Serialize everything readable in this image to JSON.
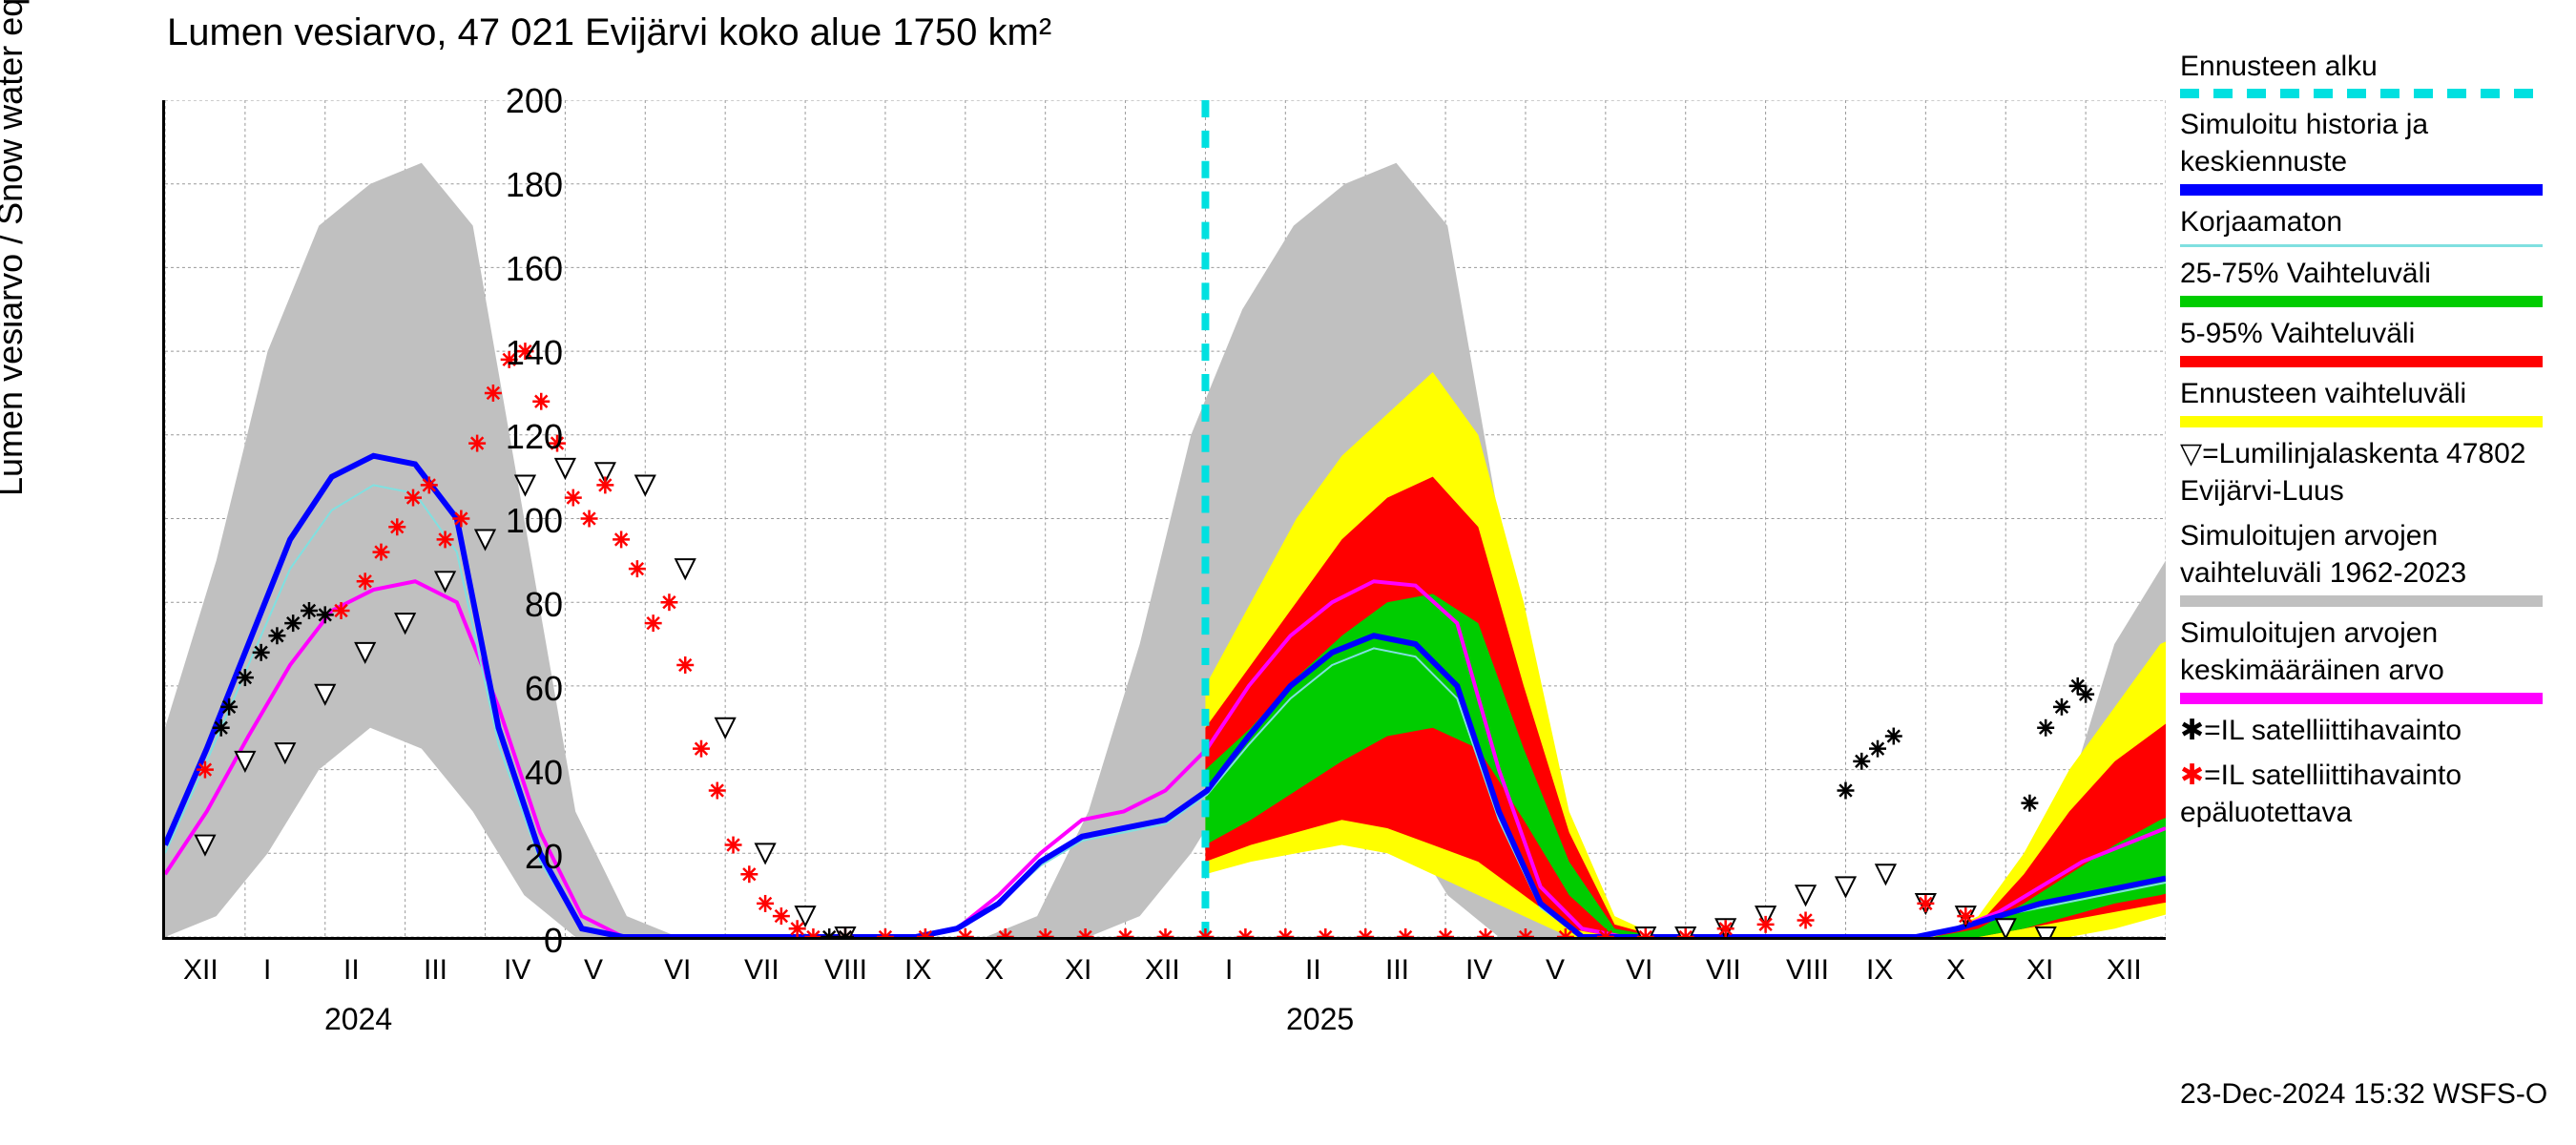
{
  "title": "Lumen vesiarvo, 47 021 Evijärvi koko alue 1750 km²",
  "y_axis_label": "Lumen vesiarvo / Snow water equiv.   mm",
  "timestamp": "23-Dec-2024 15:32 WSFS-O",
  "y_ticks": [
    0,
    20,
    40,
    60,
    80,
    100,
    120,
    140,
    160,
    180,
    200
  ],
  "y_max": 200,
  "x_month_labels": [
    "XII",
    "I",
    "II",
    "III",
    "IV",
    "V",
    "VI",
    "VII",
    "VIII",
    "IX",
    "X",
    "XI",
    "XII",
    "I",
    "II",
    "III",
    "IV",
    "V",
    "VI",
    "VII",
    "VIII",
    "IX",
    "X",
    "XI",
    "XII"
  ],
  "x_year_labels": [
    {
      "label": "2024",
      "month_index": 2
    },
    {
      "label": "2025",
      "month_index": 14
    }
  ],
  "forecast_start_month_index": 12.5,
  "colors": {
    "forecast_start": "#00e0e0",
    "simulated_history": "#0000ff",
    "uncorrected": "#80e0e0",
    "range_25_75": "#00cc00",
    "range_5_95": "#ff0000",
    "forecast_range": "#ffff00",
    "historical_range": "#c0c0c0",
    "mean_value": "#ff00ff",
    "triangle_marker": "#000000",
    "black_asterisk": "#000000",
    "red_asterisk": "#ff0000",
    "grid": "#999999",
    "background": "#ffffff"
  },
  "legend": [
    {
      "label": "Ennusteen alku",
      "type": "dashed",
      "color_key": "forecast_start"
    },
    {
      "label": "Simuloitu historia ja keskiennuste",
      "type": "solid",
      "color_key": "simulated_history"
    },
    {
      "label": "Korjaamaton",
      "type": "solid_thin",
      "color_key": "uncorrected"
    },
    {
      "label": "25-75% Vaihteluväli",
      "type": "solid",
      "color_key": "range_25_75"
    },
    {
      "label": "5-95% Vaihteluväli",
      "type": "solid",
      "color_key": "range_5_95"
    },
    {
      "label": "Ennusteen vaihteluväli",
      "type": "solid",
      "color_key": "forecast_range"
    },
    {
      "label": "▽=Lumilinjalaskenta 47802 Evijärvi-Luus",
      "type": "none"
    },
    {
      "label": "Simuloitujen arvojen vaihteluväli 1962-2023",
      "type": "solid",
      "color_key": "historical_range"
    },
    {
      "label": "Simuloitujen arvojen keskimääräinen arvo",
      "type": "solid",
      "color_key": "mean_value"
    },
    {
      "label": "✱=IL satelliittihavainto",
      "type": "none"
    },
    {
      "label": "✱=IL satelliittihavainto epäluotettava",
      "type": "none",
      "label_color_key": "red_asterisk"
    }
  ],
  "historical_range_band": {
    "upper": [
      50,
      90,
      140,
      170,
      180,
      185,
      170,
      100,
      30,
      5,
      0,
      0,
      0,
      0,
      0,
      0,
      0,
      5,
      30,
      70,
      120,
      150,
      170,
      180,
      185,
      170,
      100,
      30,
      5,
      0,
      0,
      0,
      0,
      0,
      0,
      0,
      5,
      30,
      70,
      90
    ],
    "lower": [
      0,
      5,
      20,
      40,
      50,
      45,
      30,
      10,
      0,
      0,
      0,
      0,
      0,
      0,
      0,
      0,
      0,
      0,
      0,
      5,
      20,
      40,
      50,
      45,
      30,
      10,
      0,
      0,
      0,
      0,
      0,
      0,
      0,
      0,
      0,
      0,
      0,
      0,
      5,
      15
    ]
  },
  "forecast_range_band": {
    "start_index": 12.5,
    "upper": [
      60,
      80,
      100,
      115,
      125,
      135,
      120,
      80,
      30,
      5,
      0,
      0,
      0,
      0,
      0,
      0,
      0,
      5,
      20,
      40,
      55,
      70,
      75
    ],
    "lower": [
      15,
      18,
      20,
      22,
      20,
      15,
      10,
      5,
      0,
      0,
      0,
      0,
      0,
      0,
      0,
      0,
      0,
      0,
      0,
      0,
      2,
      5,
      8
    ]
  },
  "range_5_95_band": {
    "start_index": 12.5,
    "upper": [
      50,
      65,
      80,
      95,
      105,
      110,
      98,
      60,
      25,
      3,
      0,
      0,
      0,
      0,
      0,
      0,
      0,
      3,
      15,
      30,
      42,
      50,
      58
    ],
    "lower": [
      18,
      22,
      25,
      28,
      26,
      22,
      18,
      10,
      2,
      0,
      0,
      0,
      0,
      0,
      0,
      0,
      0,
      0,
      2,
      4,
      6,
      8,
      10
    ]
  },
  "range_25_75_band": {
    "start_index": 12.5,
    "upper": [
      40,
      50,
      62,
      72,
      80,
      82,
      75,
      45,
      18,
      2,
      0,
      0,
      0,
      0,
      0,
      0,
      0,
      2,
      8,
      15,
      22,
      28,
      32
    ],
    "lower": [
      22,
      28,
      35,
      42,
      48,
      50,
      45,
      28,
      10,
      0,
      0,
      0,
      0,
      0,
      0,
      0,
      0,
      0,
      2,
      5,
      8,
      10,
      13
    ]
  },
  "simulated_line": [
    22,
    45,
    70,
    95,
    110,
    115,
    113,
    100,
    50,
    20,
    2,
    0,
    0,
    0,
    0,
    0,
    0,
    0,
    0,
    2,
    8,
    18,
    24,
    26,
    28,
    35,
    48,
    60,
    68,
    72,
    70,
    60,
    30,
    8,
    0,
    0,
    0,
    0,
    0,
    0,
    0,
    0,
    0,
    2,
    5,
    8,
    10,
    12,
    14
  ],
  "uncorrected_line": [
    20,
    42,
    65,
    88,
    102,
    108,
    106,
    92,
    46,
    18,
    2,
    0,
    0,
    0,
    0,
    0,
    0,
    0,
    0,
    2,
    8,
    17,
    23,
    25,
    27,
    34,
    46,
    57,
    65,
    69,
    67,
    57,
    28,
    7,
    0,
    0,
    0,
    0,
    0,
    0,
    0,
    0,
    0,
    2,
    5,
    7,
    9,
    11,
    13
  ],
  "mean_line": [
    15,
    30,
    48,
    65,
    78,
    83,
    85,
    80,
    55,
    25,
    5,
    0,
    0,
    0,
    0,
    0,
    0,
    0,
    0,
    2,
    10,
    20,
    28,
    30,
    35,
    45,
    60,
    72,
    80,
    85,
    84,
    75,
    40,
    12,
    2,
    0,
    0,
    0,
    0,
    0,
    0,
    0,
    0,
    2,
    6,
    12,
    18,
    22,
    26
  ],
  "triangle_points": [
    {
      "x": 0,
      "y": 22
    },
    {
      "x": 0.5,
      "y": 42
    },
    {
      "x": 1,
      "y": 44
    },
    {
      "x": 1.5,
      "y": 58
    },
    {
      "x": 2,
      "y": 68
    },
    {
      "x": 2.5,
      "y": 75
    },
    {
      "x": 3,
      "y": 85
    },
    {
      "x": 3.5,
      "y": 95
    },
    {
      "x": 4,
      "y": 108
    },
    {
      "x": 4.5,
      "y": 112
    },
    {
      "x": 5,
      "y": 111
    },
    {
      "x": 5.5,
      "y": 108
    },
    {
      "x": 6,
      "y": 88
    },
    {
      "x": 6.5,
      "y": 50
    },
    {
      "x": 7,
      "y": 20
    },
    {
      "x": 7.5,
      "y": 5
    },
    {
      "x": 8,
      "y": 0
    },
    {
      "x": 18,
      "y": 0
    },
    {
      "x": 18.5,
      "y": 0
    },
    {
      "x": 19,
      "y": 2
    },
    {
      "x": 19.5,
      "y": 5
    },
    {
      "x": 20,
      "y": 10
    },
    {
      "x": 20.5,
      "y": 12
    },
    {
      "x": 21,
      "y": 15
    },
    {
      "x": 21.5,
      "y": 8
    },
    {
      "x": 22,
      "y": 5
    },
    {
      "x": 22.5,
      "y": 2
    },
    {
      "x": 23,
      "y": 0
    }
  ],
  "black_asterisk_points": [
    {
      "x": 0.2,
      "y": 50
    },
    {
      "x": 0.3,
      "y": 55
    },
    {
      "x": 0.5,
      "y": 62
    },
    {
      "x": 0.7,
      "y": 68
    },
    {
      "x": 0.9,
      "y": 72
    },
    {
      "x": 1.1,
      "y": 75
    },
    {
      "x": 1.3,
      "y": 78
    },
    {
      "x": 1.5,
      "y": 77
    },
    {
      "x": 7.8,
      "y": 0
    },
    {
      "x": 8,
      "y": 0
    },
    {
      "x": 20.5,
      "y": 35
    },
    {
      "x": 20.7,
      "y": 42
    },
    {
      "x": 20.9,
      "y": 45
    },
    {
      "x": 21.1,
      "y": 48
    },
    {
      "x": 22.8,
      "y": 32
    },
    {
      "x": 23,
      "y": 50
    },
    {
      "x": 23.2,
      "y": 55
    },
    {
      "x": 23.4,
      "y": 60
    },
    {
      "x": 23.5,
      "y": 58
    }
  ],
  "red_asterisk_points": [
    {
      "x": 0,
      "y": 40
    },
    {
      "x": 1.7,
      "y": 78
    },
    {
      "x": 2,
      "y": 85
    },
    {
      "x": 2.2,
      "y": 92
    },
    {
      "x": 2.4,
      "y": 98
    },
    {
      "x": 2.6,
      "y": 105
    },
    {
      "x": 2.8,
      "y": 108
    },
    {
      "x": 3,
      "y": 95
    },
    {
      "x": 3.2,
      "y": 100
    },
    {
      "x": 3.4,
      "y": 118
    },
    {
      "x": 3.6,
      "y": 130
    },
    {
      "x": 3.8,
      "y": 138
    },
    {
      "x": 4,
      "y": 140
    },
    {
      "x": 4.2,
      "y": 128
    },
    {
      "x": 4.4,
      "y": 118
    },
    {
      "x": 4.6,
      "y": 105
    },
    {
      "x": 4.8,
      "y": 100
    },
    {
      "x": 5,
      "y": 108
    },
    {
      "x": 5.2,
      "y": 95
    },
    {
      "x": 5.4,
      "y": 88
    },
    {
      "x": 5.6,
      "y": 75
    },
    {
      "x": 5.8,
      "y": 80
    },
    {
      "x": 6,
      "y": 65
    },
    {
      "x": 6.2,
      "y": 45
    },
    {
      "x": 6.4,
      "y": 35
    },
    {
      "x": 6.6,
      "y": 22
    },
    {
      "x": 6.8,
      "y": 15
    },
    {
      "x": 7,
      "y": 8
    },
    {
      "x": 7.2,
      "y": 5
    },
    {
      "x": 7.4,
      "y": 2
    },
    {
      "x": 7.6,
      "y": 0
    },
    {
      "x": 8,
      "y": 0
    },
    {
      "x": 8.5,
      "y": 0
    },
    {
      "x": 9,
      "y": 0
    },
    {
      "x": 9.5,
      "y": 0
    },
    {
      "x": 10,
      "y": 0
    },
    {
      "x": 10.5,
      "y": 0
    },
    {
      "x": 11,
      "y": 0
    },
    {
      "x": 11.5,
      "y": 0
    },
    {
      "x": 12,
      "y": 0
    },
    {
      "x": 12.5,
      "y": 0
    },
    {
      "x": 13,
      "y": 0
    },
    {
      "x": 13.5,
      "y": 0
    },
    {
      "x": 14,
      "y": 0
    },
    {
      "x": 14.5,
      "y": 0
    },
    {
      "x": 15,
      "y": 0
    },
    {
      "x": 15.5,
      "y": 0
    },
    {
      "x": 16,
      "y": 0
    },
    {
      "x": 16.5,
      "y": 0
    },
    {
      "x": 17,
      "y": 0
    },
    {
      "x": 17.5,
      "y": 0
    },
    {
      "x": 18,
      "y": 0
    },
    {
      "x": 18.5,
      "y": 0
    },
    {
      "x": 19,
      "y": 2
    },
    {
      "x": 19.5,
      "y": 3
    },
    {
      "x": 20,
      "y": 4
    },
    {
      "x": 21.5,
      "y": 8
    },
    {
      "x": 22,
      "y": 5
    }
  ]
}
